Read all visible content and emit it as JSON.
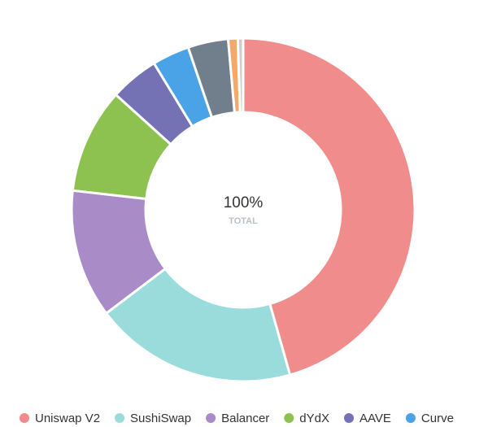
{
  "chart_data": {
    "type": "pie",
    "center_label": "100%",
    "center_sublabel": "TOTAL",
    "categories": [
      "Uniswap V2",
      "SushiSwap",
      "Balancer",
      "dYdX",
      "AAVE",
      "Curve",
      null,
      null,
      null
    ],
    "values": [
      45.6,
      19.1,
      12.1,
      9.9,
      4.6,
      3.5,
      3.8,
      0.9,
      0.5
    ],
    "colors": [
      "#f08c8c",
      "#9adcdc",
      "#a98bc8",
      "#8dc150",
      "#7571b5",
      "#4aa3e6",
      "#717f8c",
      "#f2a96a",
      "#c9cdd2"
    ]
  }
}
